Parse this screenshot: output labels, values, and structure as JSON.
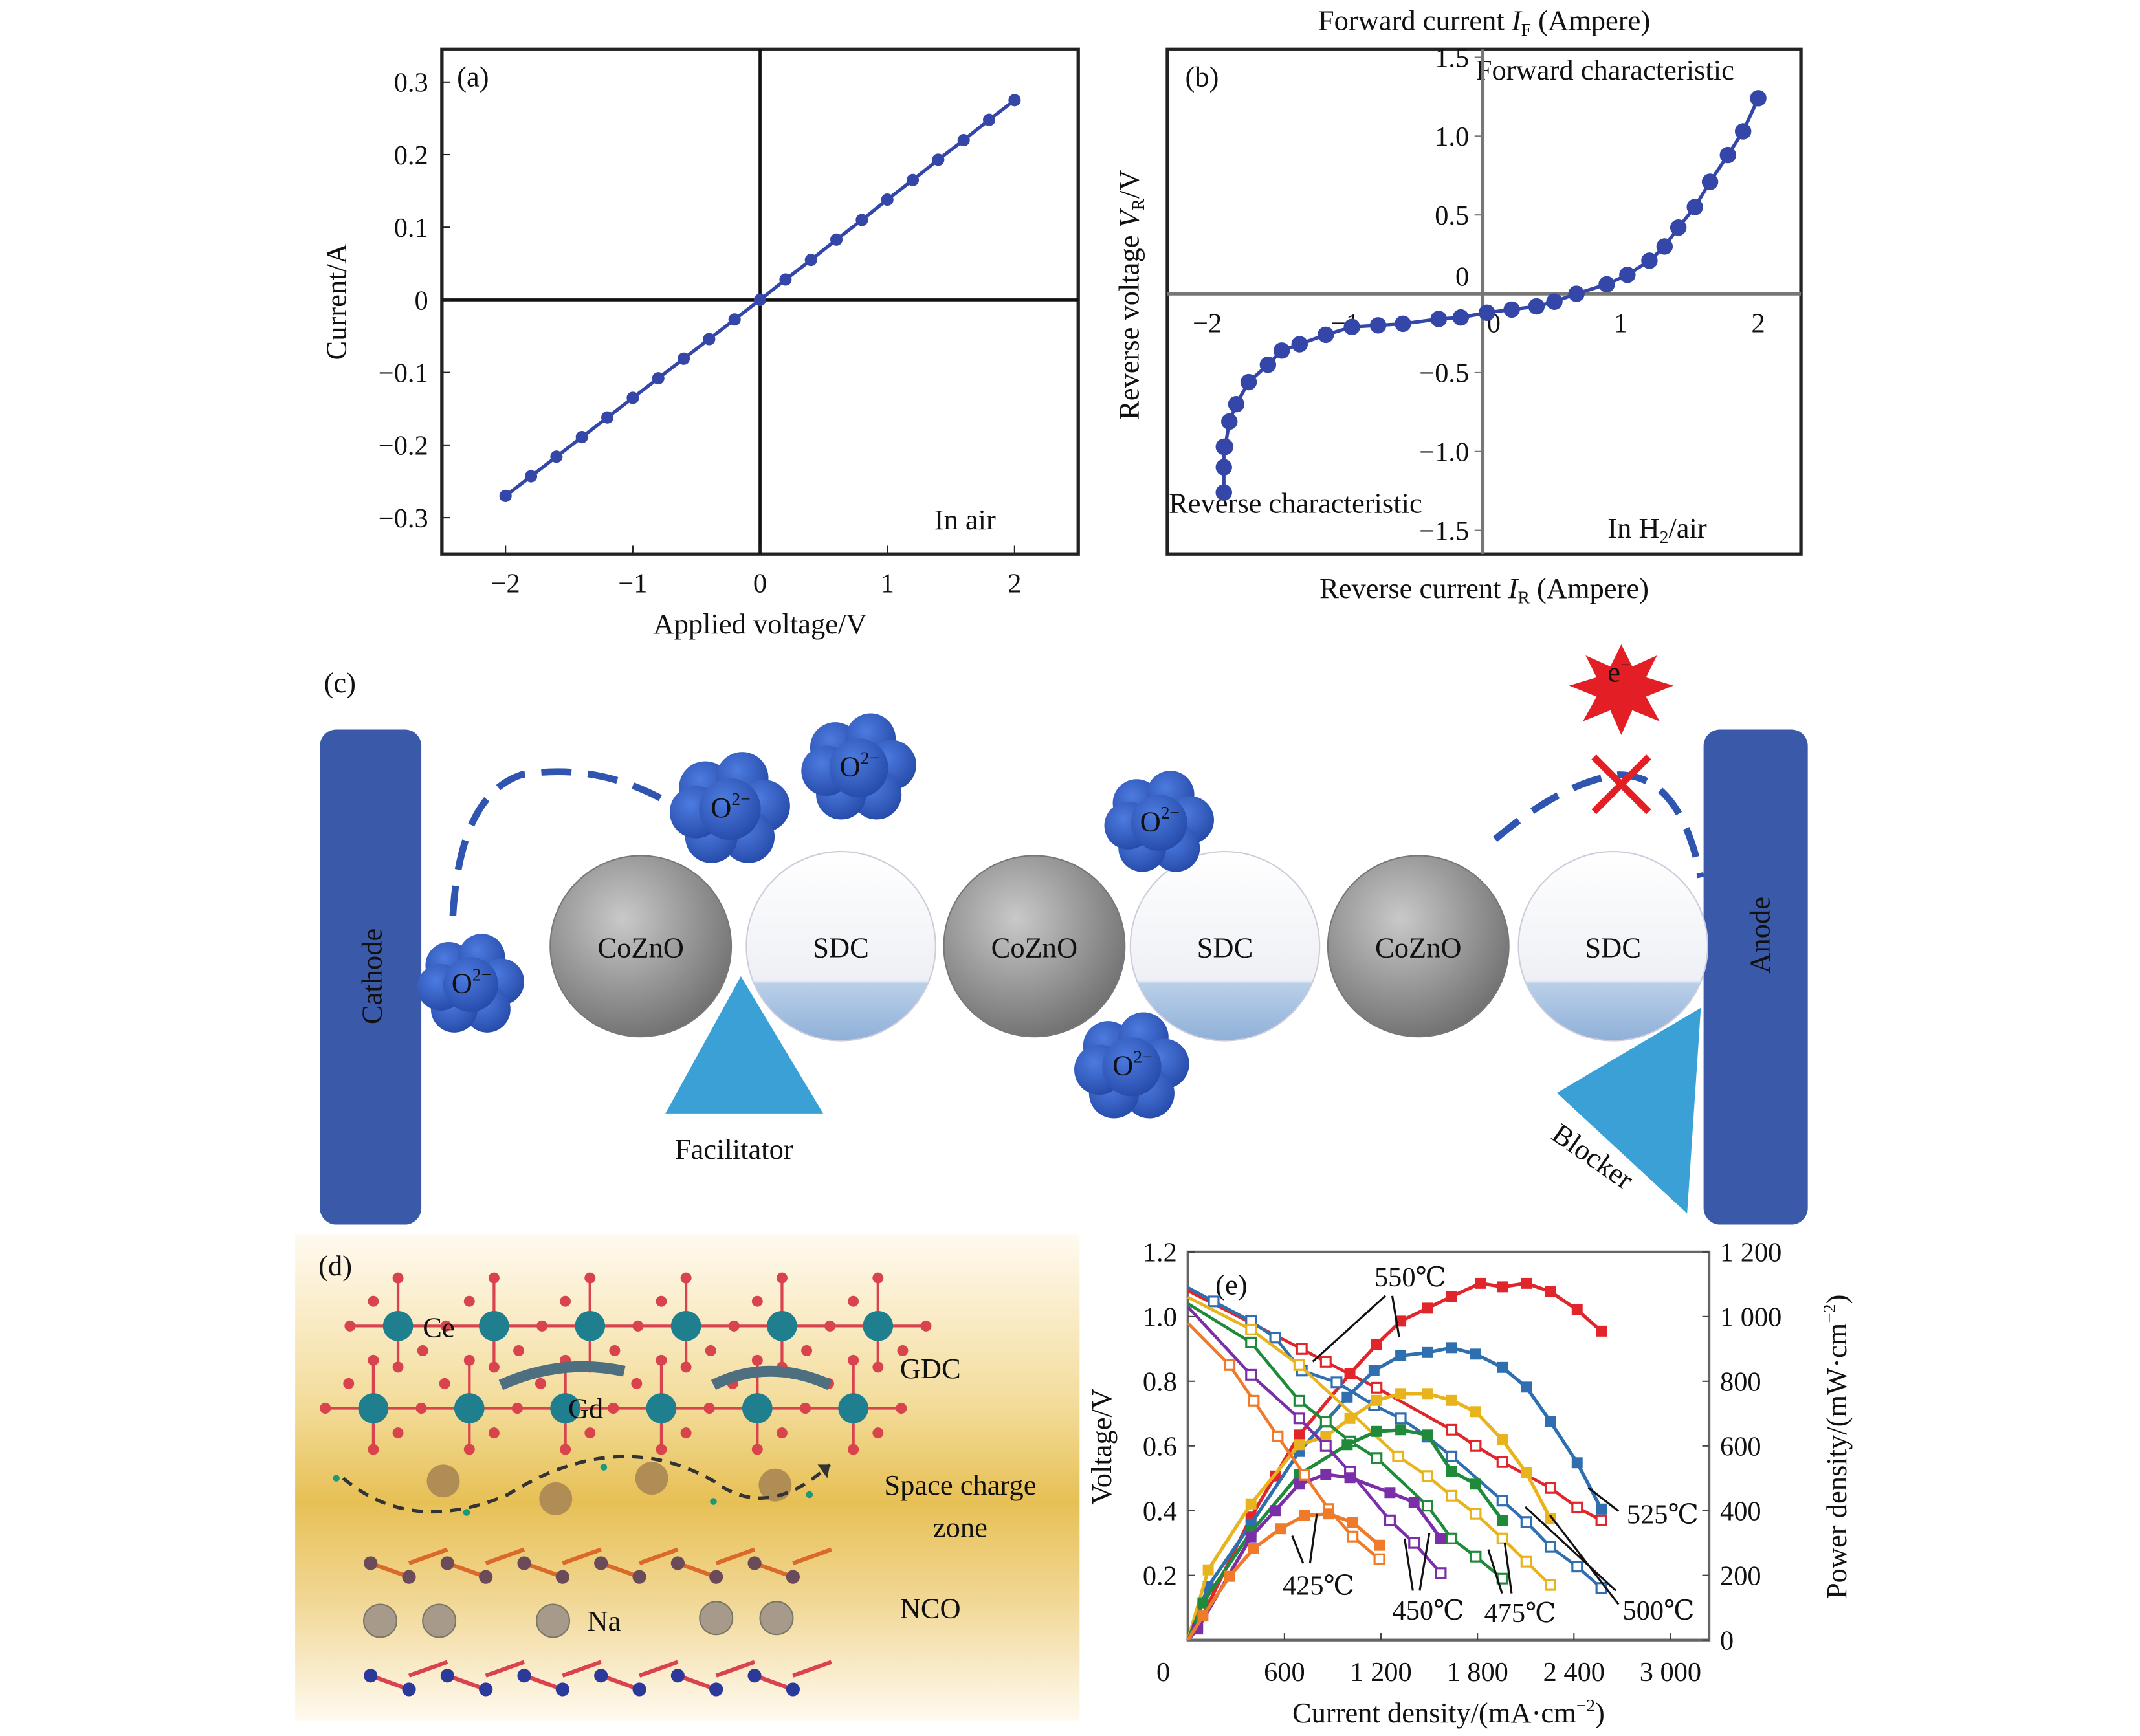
{
  "chart_data": [
    {
      "panel": "(a)",
      "type": "line",
      "xlabel": "Applied voltage/V",
      "ylabel": "Current/A",
      "annotation": "In air",
      "xlim": [
        -2.5,
        2.5
      ],
      "ylim": [
        -0.35,
        0.345
      ],
      "xticks": [
        {
          "v": -2,
          "label": "−2"
        },
        {
          "v": -1,
          "label": "−1"
        },
        {
          "v": 0,
          "label": "0"
        },
        {
          "v": 1,
          "label": "1"
        },
        {
          "v": 2,
          "label": "2"
        }
      ],
      "yticks": [
        {
          "v": 0.3,
          "label": "0.3"
        },
        {
          "v": 0.2,
          "label": "0.2"
        },
        {
          "v": 0.1,
          "label": "0.1"
        },
        {
          "v": 0,
          "label": "0"
        },
        {
          "v": -0.1,
          "label": "−0.1"
        },
        {
          "v": -0.2,
          "label": "−0.2"
        },
        {
          "v": -0.3,
          "label": "−0.3"
        }
      ],
      "color": "#3446a8",
      "x": [
        -2.0,
        -1.8,
        -1.6,
        -1.4,
        -1.2,
        -1.0,
        -0.8,
        -0.6,
        -0.4,
        -0.2,
        0.0,
        0.2,
        0.4,
        0.6,
        0.8,
        1.0,
        1.2,
        1.4,
        1.6,
        1.8,
        2.0
      ],
      "y": [
        -0.27,
        -0.243,
        -0.216,
        -0.189,
        -0.162,
        -0.135,
        -0.108,
        -0.081,
        -0.054,
        -0.027,
        0.0,
        0.028,
        0.055,
        0.083,
        0.11,
        0.138,
        0.165,
        0.193,
        0.22,
        0.248,
        0.275
      ]
    },
    {
      "panel": "(b)",
      "type": "line",
      "xlabel_top": {
        "pre": "Forward current ",
        "var": "I",
        "sub": "F",
        "post": " (Ampere)"
      },
      "xlabel_bottom": {
        "pre": "Reverse current ",
        "var": "I",
        "sub": "R",
        "post": " (Ampere)"
      },
      "ylabel": {
        "pre": "Reverse voltage ",
        "var": "V",
        "sub": "R",
        "post": "/V"
      },
      "annotations": {
        "forward": "Forward characteristic",
        "reverse": "Reverse characteristic",
        "atmos_pre": "In H",
        "atmos_sub": "2",
        "atmos_post": "/air"
      },
      "xlim": [
        -2.29,
        2.31
      ],
      "ylim": [
        -1.65,
        1.55
      ],
      "xticks": [
        {
          "v": -2,
          "label": "−2"
        },
        {
          "v": -1,
          "label": "−1"
        },
        {
          "v": 0,
          "label": "0"
        },
        {
          "v": 1,
          "label": "1"
        },
        {
          "v": 2,
          "label": "2"
        }
      ],
      "yticks": [
        {
          "v": 1.5,
          "label": "1.5"
        },
        {
          "v": 1.0,
          "label": "1.0"
        },
        {
          "v": 0.5,
          "label": "0.5"
        },
        {
          "v": 0,
          "label": "0"
        },
        {
          "v": -0.5,
          "label": "−0.5"
        },
        {
          "v": -1.0,
          "label": "−1.0"
        },
        {
          "v": -1.5,
          "label": "−1.5"
        }
      ],
      "color": "#3446a8",
      "x": [
        -1.88,
        -1.88,
        -1.88,
        -1.87,
        -1.84,
        -1.79,
        -1.7,
        -1.56,
        -1.46,
        -1.33,
        -1.14,
        -0.95,
        -0.76,
        -0.58,
        -0.32,
        -0.16,
        0.03,
        0.21,
        0.39,
        0.52,
        0.68,
        0.9,
        1.05,
        1.21,
        1.32,
        1.42,
        1.54,
        1.65,
        1.78,
        1.89,
        2.0
      ],
      "y": [
        -1.26,
        -1.1,
        -0.97,
        -0.97,
        -0.81,
        -0.7,
        -0.56,
        -0.45,
        -0.36,
        -0.32,
        -0.26,
        -0.21,
        -0.2,
        -0.19,
        -0.16,
        -0.15,
        -0.12,
        -0.1,
        -0.08,
        -0.05,
        0.0,
        0.06,
        0.12,
        0.21,
        0.3,
        0.42,
        0.55,
        0.71,
        0.88,
        1.03,
        1.24
      ]
    },
    {
      "panel": "(e)",
      "type": "line",
      "xlabel": {
        "pre": "Current density/(mA·cm",
        "sup": "−2",
        "post": ")"
      },
      "ylabel": "Voltage/V",
      "y2label": {
        "pre": "Power density/(mW·cm",
        "sup": "−2",
        "post": ")"
      },
      "xlim": [
        0,
        3240
      ],
      "ylim": [
        0,
        1.2
      ],
      "y2lim": [
        0,
        1200
      ],
      "xticks": [
        {
          "v": 0,
          "label": "0"
        },
        {
          "v": 600,
          "label": "600"
        },
        {
          "v": 1200,
          "label": "1 200"
        },
        {
          "v": 1800,
          "label": "1 800"
        },
        {
          "v": 2400,
          "label": "2 400"
        },
        {
          "v": 3000,
          "label": "3 000"
        }
      ],
      "yticks": [
        {
          "v": 0.2,
          "label": "0.2"
        },
        {
          "v": 0.4,
          "label": "0.4"
        },
        {
          "v": 0.6,
          "label": "0.6"
        },
        {
          "v": 0.8,
          "label": "0.8"
        },
        {
          "v": 1.0,
          "label": "1.0"
        },
        {
          "v": 1.2,
          "label": "1.2"
        }
      ],
      "y2ticks": [
        {
          "v": 0,
          "label": "0"
        },
        {
          "v": 200,
          "label": "200"
        },
        {
          "v": 400,
          "label": "400"
        },
        {
          "v": 600,
          "label": "600"
        },
        {
          "v": 800,
          "label": "800"
        },
        {
          "v": 1000,
          "label": "1 000"
        },
        {
          "v": 1200,
          "label": "1 200"
        }
      ],
      "series": [
        {
          "name": "550℃",
          "color": "#e0262b",
          "voltage": {
            "x": [
              0,
              708,
              857,
              1173,
              1639,
              1789,
              1955,
              2254,
              2420,
              2570
            ],
            "y": [
              1.08,
              0.9,
              0.86,
              0.78,
              0.65,
              0.6,
              0.55,
              0.47,
              0.41,
              0.37
            ]
          },
          "power": {
            "x": [
              0,
              60,
              392,
              542,
              692,
              1007,
              1173,
              1323,
              1489,
              1639,
              1818,
              1955,
              2104,
              2254,
              2420,
              2570
            ],
            "y": [
              0,
              44,
              380,
              507,
              634,
              823,
              914,
              986,
              1026,
              1062,
              1103,
              1092,
              1103,
              1077,
              1021,
              955
            ]
          }
        },
        {
          "name": "525℃",
          "color": "#2f6fb0",
          "voltage": {
            "x": [
              0,
              160,
              392,
              542,
              708,
              924,
              1157,
              1323,
              1489,
              1639,
              1955,
              2104,
              2254,
              2420,
              2570
            ],
            "y": [
              1.09,
              1.047,
              0.986,
              0.935,
              0.833,
              0.797,
              0.726,
              0.685,
              0.629,
              0.568,
              0.431,
              0.365,
              0.288,
              0.227,
              0.161
            ]
          },
          "power": {
            "x": [
              0,
              126,
              392,
              692,
              990,
              1157,
              1323,
              1489,
              1639,
              1789,
              1955,
              2104,
              2254,
              2420,
              2570
            ],
            "y": [
              0,
              166,
              359,
              583,
              751,
              833,
              879,
              889,
              904,
              884,
              843,
              782,
              675,
              548,
              405
            ]
          }
        },
        {
          "name": "500℃",
          "color": "#e8b31c",
          "voltage": {
            "x": [
              0,
              392,
              692,
              1306,
              1489,
              1639,
              1789,
              1955,
              2104,
              2254
            ],
            "y": [
              1.06,
              0.96,
              0.85,
              0.568,
              0.507,
              0.446,
              0.39,
              0.314,
              0.242,
              0.17
            ]
          },
          "power": {
            "x": [
              0,
              126,
              392,
              692,
              857,
              1007,
              1173,
              1323,
              1489,
              1639,
              1789,
              1955,
              2104,
              2254
            ],
            "y": [
              0,
              217,
              421,
              604,
              629,
              685,
              741,
              762,
              762,
              741,
              706,
              619,
              517,
              375
            ]
          }
        },
        {
          "name": "475℃",
          "color": "#1f8a3a",
          "voltage": {
            "x": [
              0,
              392,
              692,
              857,
              1007,
              1173,
              1489,
              1639,
              1789,
              1955
            ],
            "y": [
              1.04,
              0.92,
              0.74,
              0.675,
              0.614,
              0.563,
              0.415,
              0.314,
              0.258,
              0.19
            ]
          },
          "power": {
            "x": [
              0,
              93,
              392,
              692,
              990,
              1173,
              1323,
              1489,
              1639,
              1789,
              1955
            ],
            "y": [
              0,
              115,
              334,
              512,
              604,
              645,
              650,
              634,
              522,
              482,
              370
            ]
          }
        },
        {
          "name": "450℃",
          "color": "#7a2fa8",
          "voltage": {
            "x": [
              0,
              392,
              692,
              857,
              1007,
              1256,
              1406,
              1572
            ],
            "y": [
              1.03,
              0.82,
              0.685,
              0.6,
              0.52,
              0.37,
              0.3,
              0.207
            ]
          },
          "power": {
            "x": [
              0,
              60,
              392,
              542,
              692,
              857,
              1007,
              1256,
              1406,
              1572
            ],
            "y": [
              0,
              34,
              319,
              400,
              482,
              512,
              502,
              456,
              426,
              314
            ]
          }
        },
        {
          "name": "425℃",
          "color": "#ef7a2a",
          "voltage": {
            "x": [
              0,
              259,
              409,
              558,
              725,
              874,
              1024,
              1190
            ],
            "y": [
              0.98,
              0.85,
              0.74,
              0.63,
              0.51,
              0.405,
              0.32,
              0.25
            ]
          },
          "power": {
            "x": [
              0,
              93,
              259,
              409,
              575,
              725,
              874,
              1024,
              1190
            ],
            "y": [
              0,
              74,
              197,
              283,
              344,
              385,
              390,
              364,
              293
            ]
          }
        }
      ]
    }
  ],
  "diagram_c": {
    "panel": "(c)",
    "cathode": "Cathode",
    "anode": "Anode",
    "particles": [
      "CoZnO",
      "SDC",
      "CoZnO",
      "SDC",
      "CoZnO",
      "SDC"
    ],
    "oxide_ion": {
      "base": "O",
      "sup": "2−"
    },
    "facilitator": "Facilitator",
    "blocker": "Blocker",
    "electron": {
      "base": "e",
      "sup": "−"
    },
    "colors": {
      "electrode": "#3a59a8",
      "cloud": "#2f5bb5",
      "triangle": "#3aa0d6",
      "cozno": "#8e8e8e",
      "sdc": "#f2f4f8",
      "electron": "#e31e24"
    }
  },
  "diagram_d": {
    "panel": "(d)",
    "labels": {
      "ce": "Ce",
      "gd": "Gd",
      "gdc": "GDC",
      "space1": "Space charge",
      "space2": "zone",
      "nco": "NCO",
      "na": "Na"
    },
    "colors": {
      "zone": "#e8c35a",
      "ce_atom": "#1f7f8f",
      "o_atom": "#d8434e",
      "na_atom": "#a89a8a",
      "co_atom": "#2b3a9a"
    }
  }
}
